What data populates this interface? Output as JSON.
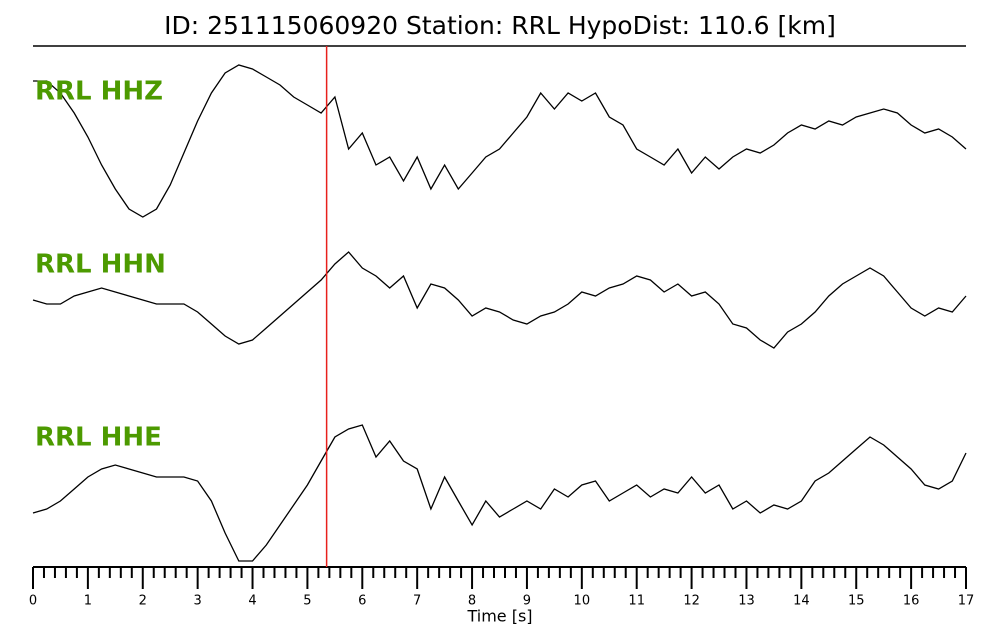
{
  "chart_data": {
    "type": "line",
    "title": "ID: 251115060920   Station: RRL   HypoDist:   110.6 [km]",
    "xlabel": "Time [s]",
    "x": [
      0,
      0.25,
      0.5,
      0.75,
      1,
      1.25,
      1.5,
      1.75,
      2,
      2.25,
      2.5,
      2.75,
      3,
      3.25,
      3.5,
      3.75,
      4,
      4.25,
      4.5,
      4.75,
      5,
      5.25,
      5.5,
      5.75,
      6,
      6.25,
      6.5,
      6.75,
      7,
      7.25,
      7.5,
      7.75,
      8,
      8.25,
      8.5,
      8.75,
      9,
      9.25,
      9.5,
      9.75,
      10,
      10.25,
      10.5,
      10.75,
      11,
      11.25,
      11.5,
      11.75,
      12,
      12.25,
      12.5,
      12.75,
      13,
      13.25,
      13.5,
      13.75,
      14,
      14.25,
      14.5,
      14.75,
      15,
      15.25,
      15.5,
      15.75,
      16,
      16.25,
      16.5,
      16.75,
      17
    ],
    "series": [
      {
        "name": "RRL HHZ",
        "color": "#000000",
        "values": [
          0.75,
          0.75,
          0.6,
          0.35,
          0.05,
          -0.3,
          -0.6,
          -0.85,
          -0.95,
          -0.85,
          -0.55,
          -0.15,
          0.25,
          0.6,
          0.85,
          0.95,
          0.9,
          0.8,
          0.7,
          0.55,
          0.45,
          0.35,
          0.55,
          -0.1,
          0.1,
          -0.3,
          -0.2,
          -0.5,
          -0.2,
          -0.6,
          -0.3,
          -0.6,
          -0.4,
          -0.2,
          -0.1,
          0.1,
          0.3,
          0.6,
          0.4,
          0.6,
          0.5,
          0.6,
          0.3,
          0.2,
          -0.1,
          -0.2,
          -0.3,
          -0.1,
          -0.4,
          -0.2,
          -0.35,
          -0.2,
          -0.1,
          -0.15,
          -0.05,
          0.1,
          0.2,
          0.15,
          0.25,
          0.2,
          0.3,
          0.35,
          0.4,
          0.35,
          0.2,
          0.1,
          0.15,
          0.05,
          -0.1
        ]
      },
      {
        "name": "RRL HHN",
        "color": "#000000",
        "values": [
          0,
          -0.05,
          -0.05,
          0.05,
          0.1,
          0.15,
          0.1,
          0.05,
          0,
          -0.05,
          -0.05,
          -0.05,
          -0.15,
          -0.3,
          -0.45,
          -0.55,
          -0.5,
          -0.35,
          -0.2,
          -0.05,
          0.1,
          0.25,
          0.45,
          0.6,
          0.4,
          0.3,
          0.15,
          0.3,
          -0.1,
          0.2,
          0.15,
          0,
          -0.2,
          -0.1,
          -0.15,
          -0.25,
          -0.3,
          -0.2,
          -0.15,
          -0.05,
          0.1,
          0.05,
          0.15,
          0.2,
          0.3,
          0.25,
          0.1,
          0.2,
          0.05,
          0.1,
          -0.05,
          -0.3,
          -0.35,
          -0.5,
          -0.6,
          -0.4,
          -0.3,
          -0.15,
          0.05,
          0.2,
          0.3,
          0.4,
          0.3,
          0.1,
          -0.1,
          -0.2,
          -0.1,
          -0.15,
          0.05
        ]
      },
      {
        "name": "RRL HHE",
        "color": "#000000",
        "values": [
          -0.35,
          -0.3,
          -0.2,
          -0.05,
          0.1,
          0.2,
          0.25,
          0.2,
          0.15,
          0.1,
          0.1,
          0.1,
          0.05,
          -0.2,
          -0.6,
          -0.95,
          -0.95,
          -0.75,
          -0.5,
          -0.25,
          0,
          0.3,
          0.6,
          0.7,
          0.75,
          0.35,
          0.55,
          0.3,
          0.2,
          -0.3,
          0.1,
          -0.2,
          -0.5,
          -0.2,
          -0.4,
          -0.3,
          -0.2,
          -0.3,
          -0.05,
          -0.15,
          0,
          0.05,
          -0.2,
          -0.1,
          0,
          -0.15,
          -0.05,
          -0.1,
          0.1,
          -0.1,
          0,
          -0.3,
          -0.2,
          -0.35,
          -0.25,
          -0.3,
          -0.2,
          0.05,
          0.15,
          0.3,
          0.45,
          0.6,
          0.5,
          0.35,
          0.2,
          0,
          -0.05,
          0.05,
          0.4
        ]
      }
    ],
    "label_color": "#4c9a00",
    "marker_x": 5.35,
    "marker_color": "#e8201c",
    "xlim": [
      0,
      17
    ],
    "ylim": [
      -1,
      1
    ],
    "xticks": [
      0,
      1,
      2,
      3,
      4,
      5,
      6,
      7,
      8,
      9,
      10,
      11,
      12,
      13,
      14,
      15,
      16,
      17
    ],
    "xminorticks": [
      0.2,
      0.4,
      0.6,
      0.8,
      1.2,
      1.4,
      1.6,
      1.8,
      2.2,
      2.4,
      2.6,
      2.8,
      3.2,
      3.4,
      3.6,
      3.8,
      4.2,
      4.4,
      4.6,
      4.8,
      5.2,
      5.4,
      5.6,
      5.8,
      6.2,
      6.4,
      6.6,
      6.8,
      7.2,
      7.4,
      7.6,
      7.8,
      8.2,
      8.4,
      8.6,
      8.8,
      9.2,
      9.4,
      9.6,
      9.8,
      10.2,
      10.4,
      10.6,
      10.8,
      11.2,
      11.4,
      11.6,
      11.8,
      12.2,
      12.4,
      12.6,
      12.8,
      13.2,
      13.4,
      13.6,
      13.8,
      14.2,
      14.4,
      14.6,
      14.8,
      15.2,
      15.4,
      15.6,
      15.8,
      16.2,
      16.4,
      16.6,
      16.8
    ]
  }
}
